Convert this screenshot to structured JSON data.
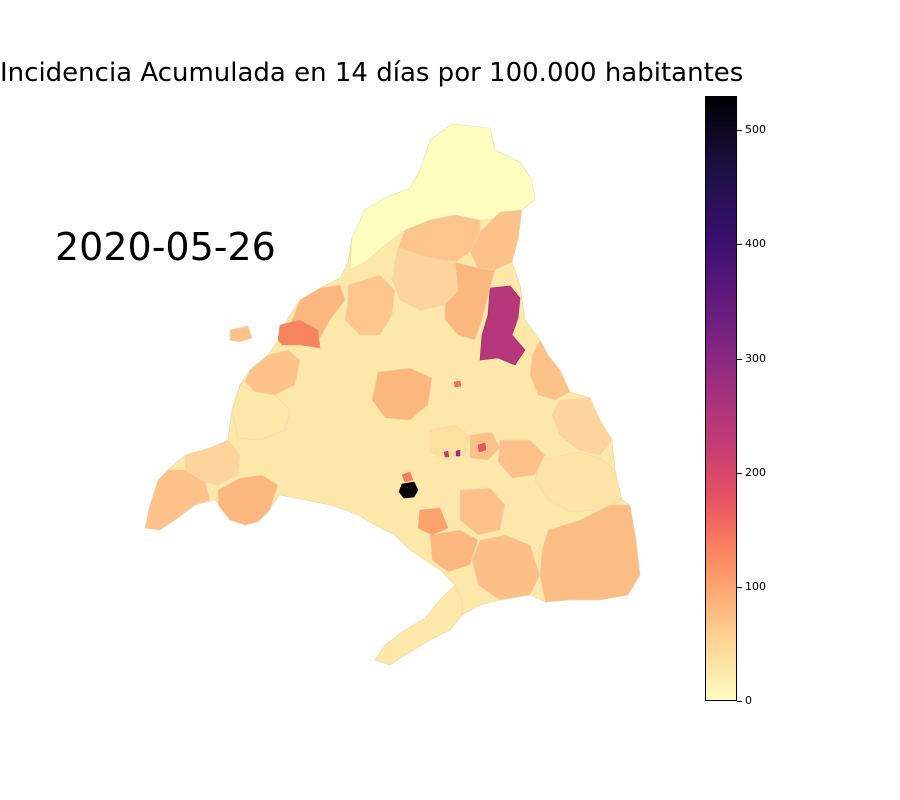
{
  "title": "Incidencia Acumulada en 14 días por 100.000 habitantes",
  "date": "2020-05-26",
  "colorbar": {
    "colormap": "magma_r",
    "min": 0,
    "max": 530,
    "ticks": [
      {
        "value": 0,
        "label": "0"
      },
      {
        "value": 100,
        "label": "100"
      },
      {
        "value": 200,
        "label": "200"
      },
      {
        "value": 300,
        "label": "300"
      },
      {
        "value": 400,
        "label": "400"
      },
      {
        "value": 500,
        "label": "500"
      }
    ]
  },
  "colors": {
    "very_low": "#fcfdbf",
    "low": "#fde7a9",
    "mid_low": "#fdd49b",
    "mid": "#fdc18a",
    "mid_high": "#fca36c",
    "high": "#f8845f",
    "very_high": "#b5367a",
    "extreme": "#000004"
  }
}
